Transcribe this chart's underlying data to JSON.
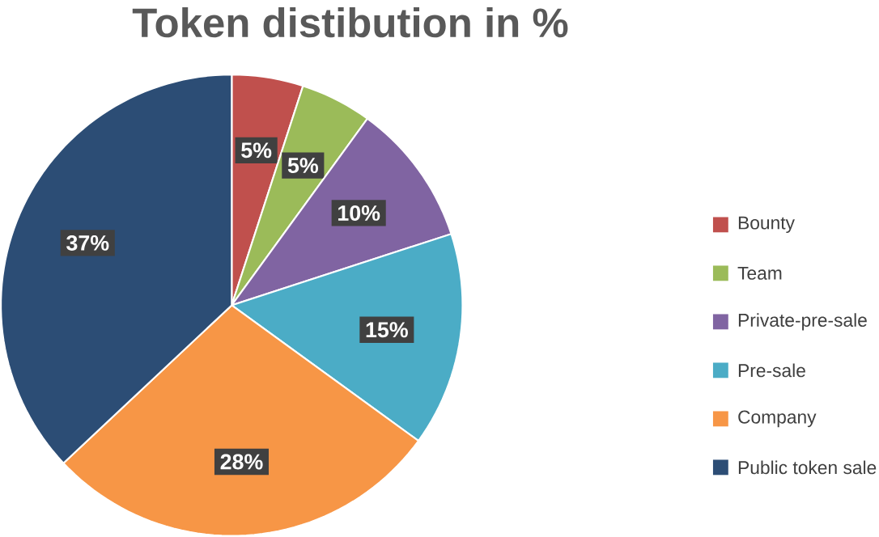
{
  "chart_data": {
    "type": "pie",
    "title": "Token distibution in %",
    "categories": [
      "Bounty",
      "Team",
      "Private-pre-sale",
      "Pre-sale",
      "Company",
      "Public token sale"
    ],
    "values": [
      5,
      5,
      10,
      15,
      28,
      37
    ],
    "value_labels": [
      "5%",
      "5%",
      "10%",
      "15%",
      "28%",
      "37%"
    ],
    "colors": [
      "#c0504d",
      "#9bbb59",
      "#8064a2",
      "#4bacc6",
      "#f79646",
      "#2c4d75"
    ],
    "legend": "right"
  }
}
